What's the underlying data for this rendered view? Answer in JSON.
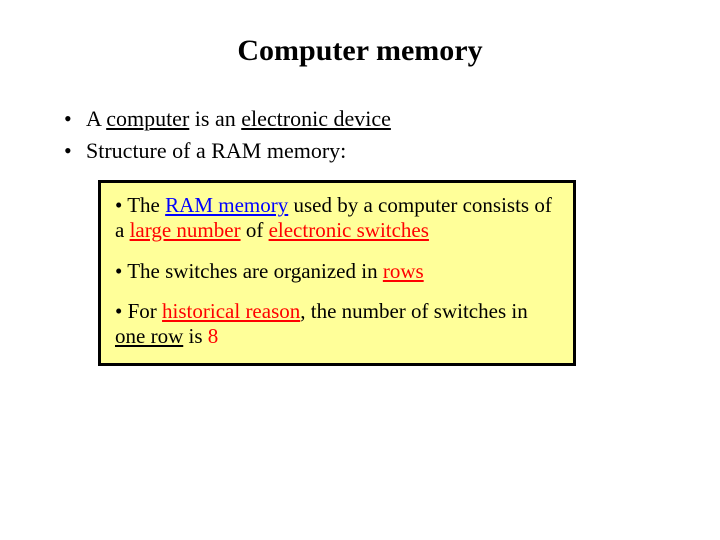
{
  "title": "Computer memory",
  "bullets": {
    "b1": {
      "pre": "A ",
      "computer": "computer",
      "mid": " is an ",
      "electronic_device": "electronic device"
    },
    "b2": "Structure of a RAM memory:"
  },
  "box": {
    "i1": {
      "pre": "The ",
      "ram_memory": "RAM memory",
      "mid1": " used by a computer consists of a ",
      "large_number": "large number",
      "mid2": " of ",
      "electronic_switches": "electronic switches"
    },
    "i2": {
      "pre": "The switches are organized in ",
      "rows": "rows"
    },
    "i3": {
      "pre": "For ",
      "historical_reason": "historical reason",
      "mid1": ", the number of switches in ",
      "one_row": "one row",
      "mid2": " is ",
      "eight": "8"
    }
  },
  "colors": {
    "background": "#ffffff",
    "text": "#000000",
    "box_bg": "#ffff99",
    "box_border": "#000000",
    "red": "#ff0000",
    "blue": "#0000ff"
  },
  "fonts": {
    "family": "Times New Roman",
    "title_size_pt": 30,
    "body_size_pt": 22,
    "box_size_pt": 21
  }
}
